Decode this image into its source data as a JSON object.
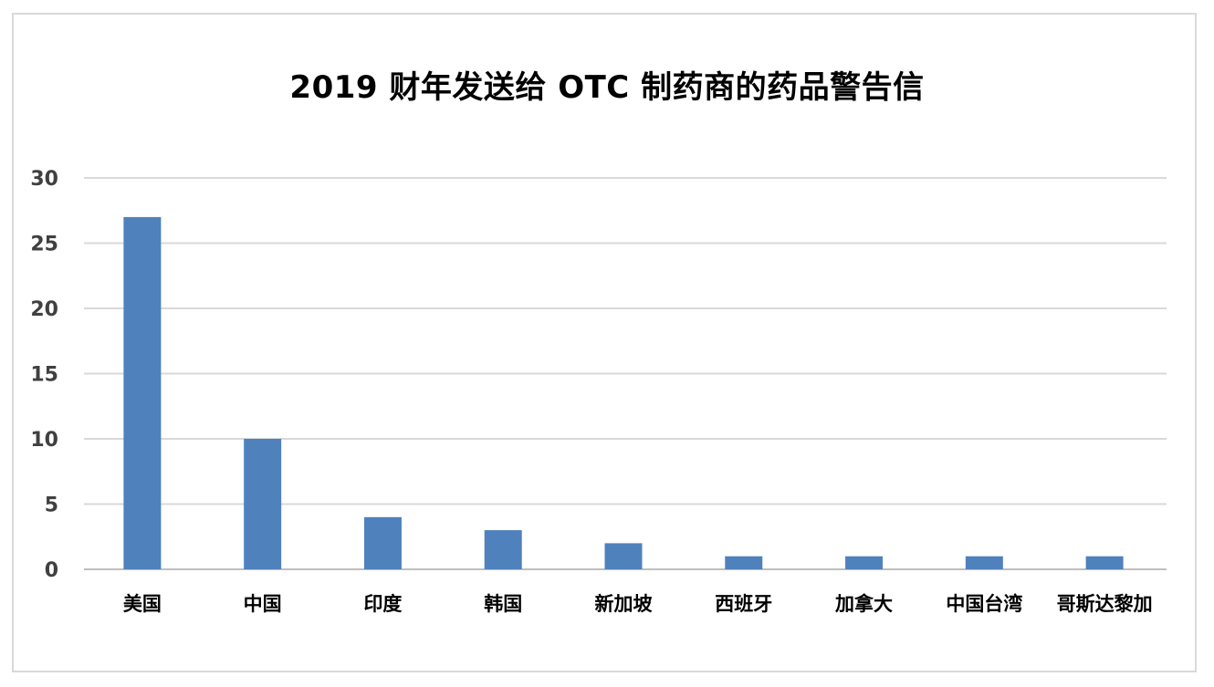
{
  "chart_data": {
    "type": "bar",
    "title": "2019 财年发送给 OTC 制药商的药品警告信",
    "xlabel": "",
    "ylabel": "",
    "categories": [
      "美国",
      "中国",
      "印度",
      "韩国",
      "新加坡",
      "西班牙",
      "加拿大",
      "中国台湾",
      "哥斯达黎加"
    ],
    "values": [
      27,
      10,
      4,
      3,
      2,
      1,
      1,
      1,
      1
    ],
    "ylim": [
      0,
      30
    ],
    "yticks": [
      0,
      5,
      10,
      15,
      20,
      25,
      30
    ],
    "grid": true,
    "legend": "none",
    "colors": {
      "bar": "#4f81bd",
      "grid": "#d9d9d9",
      "axis": "#bfbfbf"
    }
  }
}
